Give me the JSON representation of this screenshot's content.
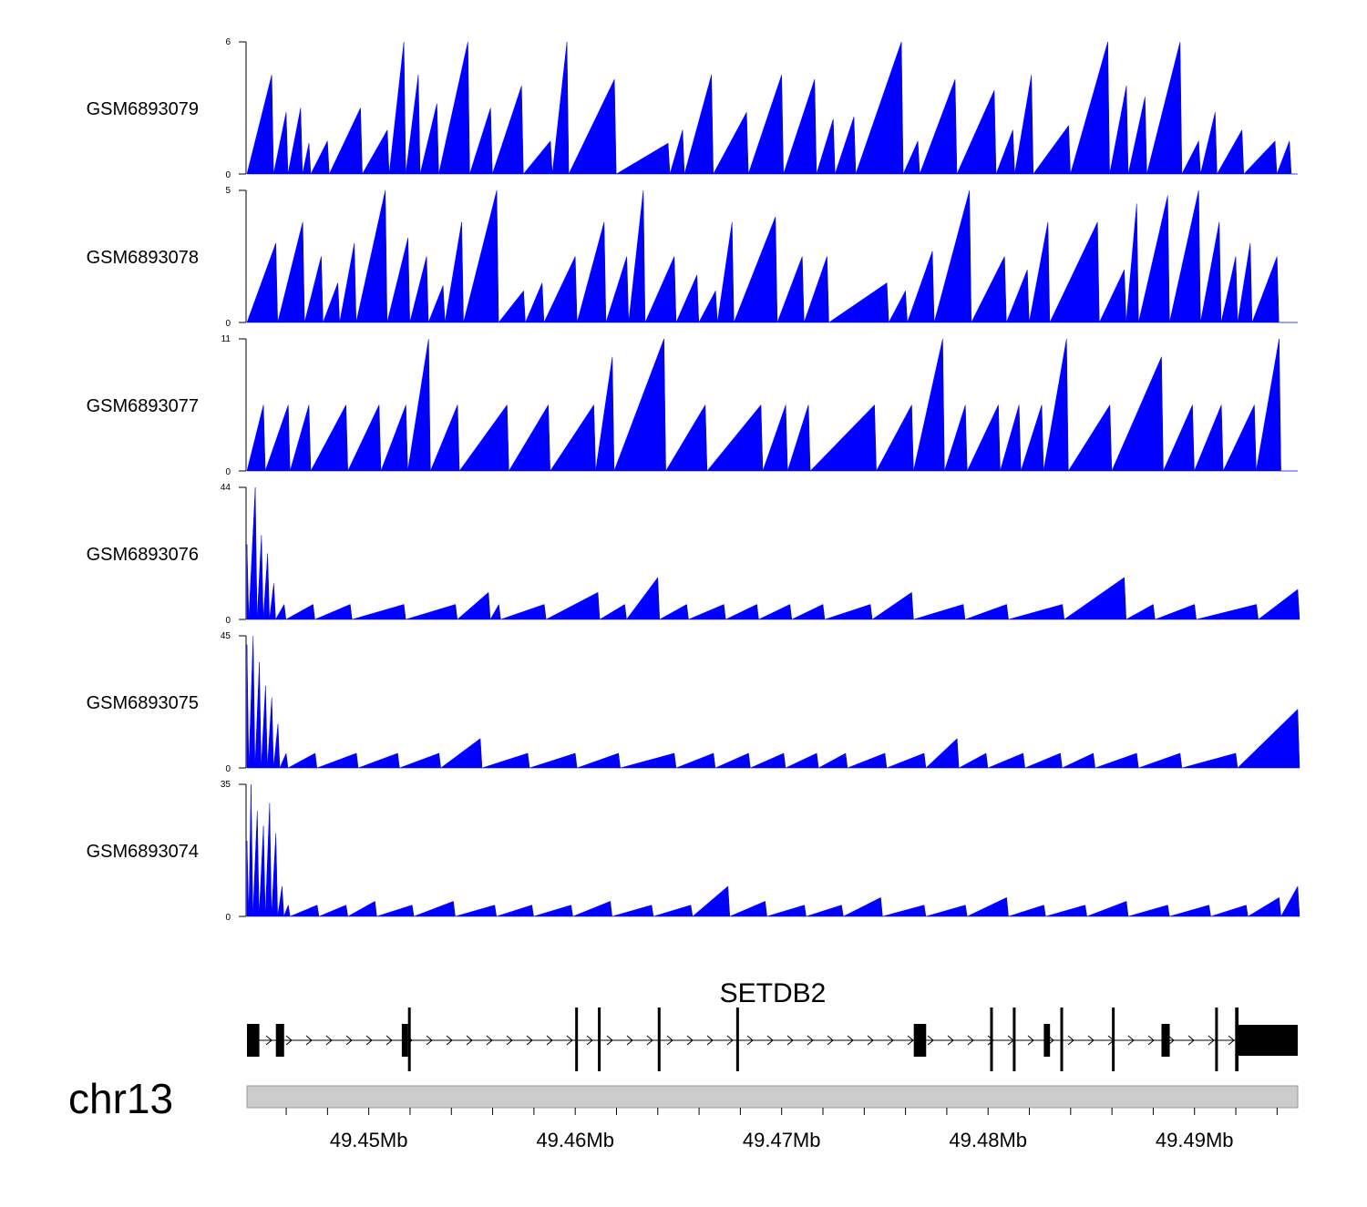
{
  "chart_data": {
    "type": "area",
    "chromosome": "chr13",
    "region": {
      "start": 49.4441,
      "end": 49.495,
      "unit": "Mb"
    },
    "x_ticks": [
      {
        "value": 49.45,
        "label": "49.45Mb"
      },
      {
        "value": 49.46,
        "label": "49.46Mb"
      },
      {
        "value": 49.47,
        "label": "49.47Mb"
      },
      {
        "value": 49.48,
        "label": "49.48Mb"
      },
      {
        "value": 49.49,
        "label": "49.49Mb"
      }
    ],
    "color": "#0000ff",
    "tracks": [
      {
        "name": "GSM6893079",
        "ymax": 6,
        "ymin": 0,
        "peaks": [
          [
            49.4453,
            4.5
          ],
          [
            49.446,
            2.8
          ],
          [
            49.4467,
            3.0
          ],
          [
            49.448,
            1.5
          ],
          [
            49.4496,
            3.0
          ],
          [
            49.4517,
            6.0
          ],
          [
            49.4524,
            4.5
          ],
          [
            49.4533,
            3.2
          ],
          [
            49.4548,
            6.0
          ],
          [
            49.4559,
            3.0
          ],
          [
            49.4574,
            4.0
          ],
          [
            49.4596,
            6.0
          ],
          [
            49.4619,
            4.3
          ],
          [
            49.4645,
            1.4
          ],
          [
            49.4666,
            4.5
          ],
          [
            49.4683,
            2.8
          ],
          [
            49.47,
            4.5
          ],
          [
            49.4716,
            4.3
          ],
          [
            49.4735,
            2.6
          ],
          [
            49.4758,
            6.0
          ],
          [
            49.4784,
            4.3
          ],
          [
            49.4803,
            3.8
          ],
          [
            49.4821,
            4.5
          ],
          [
            49.4839,
            2.2
          ],
          [
            49.4858,
            6.0
          ],
          [
            49.4876,
            3.5
          ],
          [
            49.4893,
            6.0
          ],
          [
            49.491,
            2.8
          ],
          [
            49.4923,
            2.0
          ],
          [
            49.4939,
            1.5
          ],
          [
            49.4471,
            1.4
          ],
          [
            49.4509,
            2.0
          ],
          [
            49.4588,
            1.5
          ],
          [
            49.4652,
            2.0
          ],
          [
            49.4725,
            2.5
          ],
          [
            49.4766,
            1.5
          ],
          [
            49.4812,
            2.0
          ],
          [
            49.4867,
            4.0
          ],
          [
            49.4902,
            1.5
          ],
          [
            49.4946,
            1.5
          ]
        ]
      },
      {
        "name": "GSM6893078",
        "ymax": 5,
        "ymin": 0,
        "peaks": [
          [
            49.4455,
            3.0
          ],
          [
            49.4468,
            3.8
          ],
          [
            49.4477,
            2.5
          ],
          [
            49.4493,
            3.0
          ],
          [
            49.4508,
            5.0
          ],
          [
            49.4519,
            3.2
          ],
          [
            49.4528,
            2.5
          ],
          [
            49.4545,
            3.8
          ],
          [
            49.4562,
            5.0
          ],
          [
            49.4584,
            1.5
          ],
          [
            49.46,
            2.5
          ],
          [
            49.4614,
            3.8
          ],
          [
            49.4633,
            5.0
          ],
          [
            49.4648,
            2.5
          ],
          [
            49.4659,
            1.8
          ],
          [
            49.4676,
            3.8
          ],
          [
            49.4697,
            4.0
          ],
          [
            49.4722,
            2.5
          ],
          [
            49.4751,
            1.5
          ],
          [
            49.4773,
            2.7
          ],
          [
            49.4791,
            5.0
          ],
          [
            49.4808,
            2.5
          ],
          [
            49.4829,
            3.8
          ],
          [
            49.4853,
            3.8
          ],
          [
            49.4872,
            4.5
          ],
          [
            49.4887,
            4.8
          ],
          [
            49.4902,
            5.0
          ],
          [
            49.4912,
            3.8
          ],
          [
            49.4927,
            3.0
          ],
          [
            49.494,
            2.5
          ],
          [
            49.4485,
            1.5
          ],
          [
            49.4536,
            1.4
          ],
          [
            49.4575,
            1.2
          ],
          [
            49.4625,
            2.5
          ],
          [
            49.4668,
            1.2
          ],
          [
            49.471,
            2.5
          ],
          [
            49.476,
            1.2
          ],
          [
            49.4819,
            2.0
          ],
          [
            49.4866,
            2.0
          ],
          [
            49.492,
            2.5
          ]
        ]
      },
      {
        "name": "GSM6893077",
        "ymax": 11,
        "ymin": 0,
        "peaks": [
          [
            49.4449,
            5.5
          ],
          [
            49.4461,
            5.5
          ],
          [
            49.4471,
            5.5
          ],
          [
            49.4489,
            5.5
          ],
          [
            49.4505,
            5.5
          ],
          [
            49.4518,
            5.5
          ],
          [
            49.4529,
            11.0
          ],
          [
            49.4543,
            5.5
          ],
          [
            49.4567,
            5.5
          ],
          [
            49.4587,
            5.5
          ],
          [
            49.4609,
            5.5
          ],
          [
            49.4618,
            9.5
          ],
          [
            49.4643,
            11.0
          ],
          [
            49.4663,
            5.5
          ],
          [
            49.469,
            5.5
          ],
          [
            49.4702,
            5.5
          ],
          [
            49.4713,
            5.5
          ],
          [
            49.4745,
            5.5
          ],
          [
            49.4763,
            5.5
          ],
          [
            49.4778,
            11.0
          ],
          [
            49.4789,
            5.5
          ],
          [
            49.4805,
            5.5
          ],
          [
            49.4815,
            5.5
          ],
          [
            49.4826,
            5.5
          ],
          [
            49.4838,
            11.0
          ],
          [
            49.4859,
            5.5
          ],
          [
            49.4884,
            9.5
          ],
          [
            49.4899,
            5.5
          ],
          [
            49.4913,
            5.5
          ],
          [
            49.4929,
            5.5
          ],
          [
            49.4941,
            11.0
          ]
        ]
      },
      {
        "name": "GSM6893076",
        "ymax": 44,
        "ymin": 0,
        "peaks": [
          [
            49.4441,
            25.0
          ],
          [
            49.4445,
            44.0
          ],
          [
            49.4448,
            28.0
          ],
          [
            49.4451,
            22.0
          ],
          [
            49.4454,
            12.0
          ],
          [
            49.4459,
            5.0
          ],
          [
            49.4473,
            5.0
          ],
          [
            49.4491,
            5.0
          ],
          [
            49.4517,
            5.0
          ],
          [
            49.4542,
            5.0
          ],
          [
            49.4558,
            9.0
          ],
          [
            49.4563,
            5.0
          ],
          [
            49.4585,
            5.0
          ],
          [
            49.4611,
            9.0
          ],
          [
            49.4624,
            5.0
          ],
          [
            49.464,
            14.0
          ],
          [
            49.4654,
            5.0
          ],
          [
            49.4672,
            5.0
          ],
          [
            49.4688,
            5.0
          ],
          [
            49.4704,
            5.0
          ],
          [
            49.472,
            5.0
          ],
          [
            49.4743,
            5.0
          ],
          [
            49.4763,
            9.0
          ],
          [
            49.4788,
            5.0
          ],
          [
            49.4809,
            5.0
          ],
          [
            49.4836,
            5.0
          ],
          [
            49.4866,
            14.0
          ],
          [
            49.488,
            5.0
          ],
          [
            49.49,
            5.0
          ],
          [
            49.493,
            5.0
          ],
          [
            49.495,
            10.0
          ]
        ]
      },
      {
        "name": "GSM6893075",
        "ymax": 45,
        "ymin": 0,
        "peaks": [
          [
            49.4441,
            42.0
          ],
          [
            49.4444,
            45.0
          ],
          [
            49.4447,
            36.0
          ],
          [
            49.445,
            28.0
          ],
          [
            49.4453,
            24.0
          ],
          [
            49.4456,
            15.0
          ],
          [
            49.446,
            5.0
          ],
          [
            49.4474,
            5.0
          ],
          [
            49.4494,
            5.0
          ],
          [
            49.4514,
            5.0
          ],
          [
            49.4534,
            5.0
          ],
          [
            49.4554,
            10.0
          ],
          [
            49.4577,
            5.0
          ],
          [
            49.46,
            5.0
          ],
          [
            49.4621,
            5.0
          ],
          [
            49.4648,
            5.0
          ],
          [
            49.4667,
            5.0
          ],
          [
            49.4684,
            5.0
          ],
          [
            49.4701,
            5.0
          ],
          [
            49.4717,
            5.0
          ],
          [
            49.4731,
            5.0
          ],
          [
            49.475,
            5.0
          ],
          [
            49.4769,
            5.0
          ],
          [
            49.4785,
            10.0
          ],
          [
            49.4799,
            5.0
          ],
          [
            49.4817,
            5.0
          ],
          [
            49.4835,
            5.0
          ],
          [
            49.4851,
            5.0
          ],
          [
            49.4872,
            5.0
          ],
          [
            49.4893,
            5.0
          ],
          [
            49.492,
            5.0
          ],
          [
            49.495,
            20.0
          ]
        ]
      },
      {
        "name": "GSM6893074",
        "ymax": 35,
        "ymin": 0,
        "peaks": [
          [
            49.4441,
            20.0
          ],
          [
            49.4443,
            35.0
          ],
          [
            49.4446,
            28.0
          ],
          [
            49.4449,
            24.0
          ],
          [
            49.4452,
            30.0
          ],
          [
            49.4455,
            22.0
          ],
          [
            49.4458,
            8.0
          ],
          [
            49.4461,
            3.0
          ],
          [
            49.4475,
            3.0
          ],
          [
            49.4489,
            3.0
          ],
          [
            49.4503,
            4.0
          ],
          [
            49.4521,
            3.0
          ],
          [
            49.4541,
            4.0
          ],
          [
            49.4561,
            3.0
          ],
          [
            49.4579,
            3.0
          ],
          [
            49.4598,
            3.0
          ],
          [
            49.4617,
            4.0
          ],
          [
            49.4637,
            3.0
          ],
          [
            49.4656,
            3.0
          ],
          [
            49.4674,
            8.0
          ],
          [
            49.4692,
            4.0
          ],
          [
            49.4711,
            3.0
          ],
          [
            49.4729,
            3.0
          ],
          [
            49.4748,
            5.0
          ],
          [
            49.4769,
            3.0
          ],
          [
            49.4789,
            3.0
          ],
          [
            49.4809,
            5.0
          ],
          [
            49.4827,
            3.0
          ],
          [
            49.4847,
            3.0
          ],
          [
            49.4867,
            4.0
          ],
          [
            49.4887,
            3.0
          ],
          [
            49.4907,
            3.0
          ],
          [
            49.4925,
            3.0
          ],
          [
            49.4941,
            5.0
          ],
          [
            49.495,
            8.0
          ]
        ]
      }
    ],
    "gene": {
      "name": "SETDB2",
      "strand": "+",
      "start": 49.4441,
      "end": 49.495,
      "exons": [
        [
          49.4441,
          49.4447,
          "tall"
        ],
        [
          49.4455,
          49.4459,
          "tall"
        ],
        [
          49.4516,
          49.4519,
          "tall"
        ],
        [
          49.4519,
          49.452,
          "line"
        ],
        [
          49.46,
          49.4601,
          "line"
        ],
        [
          49.4611,
          49.4612,
          "line"
        ],
        [
          49.464,
          49.4641,
          "line"
        ],
        [
          49.4678,
          49.4679,
          "line"
        ],
        [
          49.4764,
          49.477,
          "tall"
        ],
        [
          49.4801,
          49.4802,
          "line"
        ],
        [
          49.4812,
          49.4813,
          "line"
        ],
        [
          49.4827,
          49.483,
          "tall"
        ],
        [
          49.4835,
          49.4836,
          "line"
        ],
        [
          49.486,
          49.4861,
          "line"
        ],
        [
          49.4884,
          49.4888,
          "tall"
        ],
        [
          49.491,
          49.4911,
          "line"
        ],
        [
          49.492,
          49.4921,
          "line"
        ],
        [
          49.4921,
          49.495,
          "utr"
        ]
      ]
    }
  }
}
